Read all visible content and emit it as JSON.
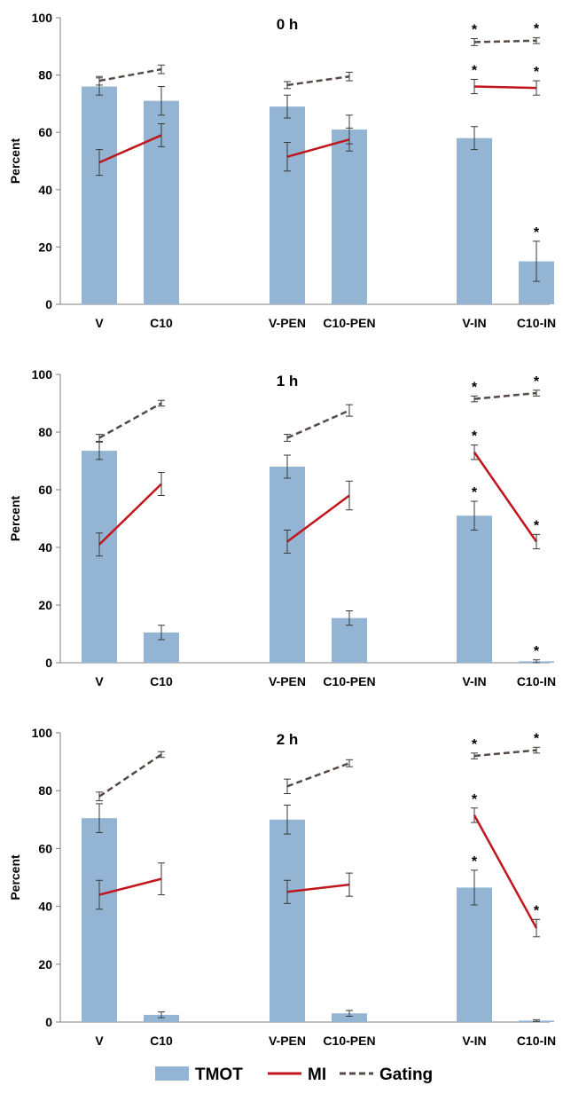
{
  "colors": {
    "tmot": "#93b5d3",
    "mi": "#c0161c",
    "gating": "#554a45",
    "axis": "#7f7f7f",
    "error": "#3a3a3a"
  },
  "categories": [
    "V",
    "C10",
    "V-PEN",
    "C10-PEN",
    "V-IN",
    "C10-IN"
  ],
  "legend": [
    {
      "key": "tmot",
      "label": "TMOT",
      "style": "bar"
    },
    {
      "key": "mi",
      "label": "MI",
      "style": "solid"
    },
    {
      "key": "gating",
      "label": "Gating",
      "style": "dashed"
    }
  ],
  "chart_data": [
    {
      "type": "bar",
      "title": "0 h",
      "ylabel": "Percent",
      "ylim": [
        0,
        100
      ],
      "yticks": [
        0,
        20,
        40,
        60,
        80,
        100
      ],
      "categories": [
        "V",
        "C10",
        "V-PEN",
        "C10-PEN",
        "V-IN",
        "C10-IN"
      ],
      "series": [
        {
          "name": "TMOT",
          "kind": "bar",
          "values": [
            76,
            71,
            69,
            61,
            58,
            15
          ],
          "errors": [
            3,
            5,
            4,
            5,
            4,
            7
          ],
          "sig": [
            false,
            false,
            false,
            false,
            false,
            true
          ]
        },
        {
          "name": "MI",
          "kind": "line",
          "values": [
            49.5,
            59,
            51.5,
            57.5,
            76,
            75.5
          ],
          "errors": [
            4.5,
            4,
            5,
            4,
            2.5,
            2.5
          ],
          "sig": [
            false,
            false,
            false,
            false,
            true,
            true
          ]
        },
        {
          "name": "Gating",
          "kind": "dashed",
          "values": [
            78,
            82,
            76.5,
            79.5,
            91.5,
            92
          ],
          "errors": [
            1.5,
            1.5,
            1.2,
            1.5,
            1.2,
            1
          ],
          "sig": [
            false,
            false,
            false,
            false,
            true,
            true
          ]
        }
      ]
    },
    {
      "type": "bar",
      "title": "1 h",
      "ylabel": "Percent",
      "ylim": [
        0,
        100
      ],
      "yticks": [
        0,
        20,
        40,
        60,
        80,
        100
      ],
      "categories": [
        "V",
        "C10",
        "V-PEN",
        "C10-PEN",
        "V-IN",
        "C10-IN"
      ],
      "series": [
        {
          "name": "TMOT",
          "kind": "bar",
          "values": [
            73.5,
            10.5,
            68,
            15.5,
            51,
            0.5
          ],
          "errors": [
            3,
            2.5,
            4,
            2.5,
            5,
            0.5
          ],
          "sig": [
            false,
            false,
            false,
            false,
            true,
            true
          ]
        },
        {
          "name": "MI",
          "kind": "line",
          "values": [
            41,
            62,
            42,
            58,
            73,
            42
          ],
          "errors": [
            4,
            4,
            4,
            5,
            2.5,
            2.5
          ],
          "sig": [
            false,
            false,
            false,
            false,
            true,
            true
          ]
        },
        {
          "name": "Gating",
          "kind": "dashed",
          "values": [
            78,
            90,
            78,
            87.5,
            91.5,
            93.5
          ],
          "errors": [
            1.2,
            1,
            1.2,
            2,
            1,
            1
          ],
          "sig": [
            false,
            false,
            false,
            false,
            true,
            true
          ]
        }
      ]
    },
    {
      "type": "bar",
      "title": "2 h",
      "ylabel": "Percent",
      "ylim": [
        0,
        100
      ],
      "yticks": [
        0,
        20,
        40,
        60,
        80,
        100
      ],
      "categories": [
        "V",
        "C10",
        "V-PEN",
        "C10-PEN",
        "V-IN",
        "C10-IN"
      ],
      "series": [
        {
          "name": "TMOT",
          "kind": "bar",
          "values": [
            70.5,
            2.5,
            70,
            3,
            46.5,
            0.5
          ],
          "errors": [
            5,
            1,
            5,
            1,
            6,
            0.3
          ],
          "sig": [
            false,
            false,
            false,
            false,
            true,
            false
          ]
        },
        {
          "name": "MI",
          "kind": "line",
          "values": [
            44,
            49.5,
            45,
            47.5,
            71.5,
            32.5
          ],
          "errors": [
            5,
            5.5,
            4,
            4,
            2.5,
            3
          ],
          "sig": [
            false,
            false,
            false,
            false,
            true,
            true
          ]
        },
        {
          "name": "Gating",
          "kind": "dashed",
          "values": [
            78,
            92.5,
            81.5,
            89.5,
            92,
            94
          ],
          "errors": [
            1.5,
            1,
            2.5,
            1.2,
            1,
            1
          ],
          "sig": [
            false,
            false,
            false,
            false,
            true,
            true
          ]
        }
      ]
    }
  ]
}
